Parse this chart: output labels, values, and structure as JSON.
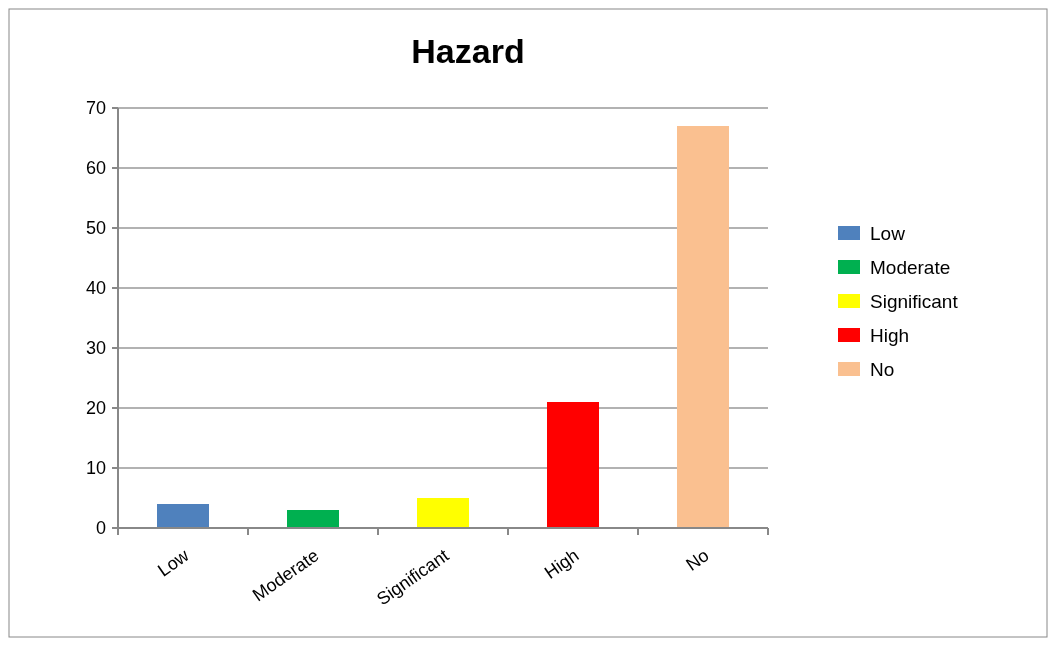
{
  "chart_data": {
    "type": "bar",
    "title": "Hazard",
    "categories": [
      "Low",
      "Moderate",
      "Significant",
      "High",
      "No"
    ],
    "series": [
      {
        "name": "Low",
        "color": "#4f81bd",
        "values": [
          4,
          null,
          null,
          null,
          null
        ]
      },
      {
        "name": "Moderate",
        "color": "#00b050",
        "values": [
          null,
          3,
          null,
          null,
          null
        ]
      },
      {
        "name": "Significant",
        "color": "#ffff00",
        "values": [
          null,
          null,
          5,
          null,
          null
        ]
      },
      {
        "name": "High",
        "color": "#ff0000",
        "values": [
          null,
          null,
          null,
          21,
          null
        ]
      },
      {
        "name": "No",
        "color": "#fac090",
        "values": [
          null,
          null,
          null,
          null,
          67
        ]
      }
    ],
    "ylim": [
      0,
      70
    ],
    "yticks": [
      0,
      10,
      20,
      30,
      40,
      50,
      60,
      70
    ],
    "grid": "y",
    "legend": "right"
  }
}
